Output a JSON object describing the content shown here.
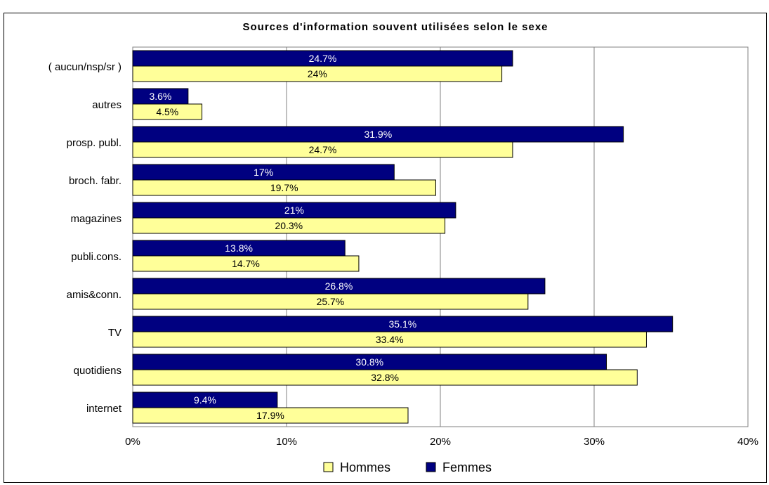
{
  "chart_data": {
    "type": "bar",
    "orientation": "horizontal",
    "title": "Sources d'information souvent utilisées selon le sexe",
    "categories": [
      "internet",
      "quotidiens",
      "TV",
      "amis&conn.",
      "publi.cons.",
      "magazines",
      "broch. fabr.",
      "prosp. publ.",
      "autres",
      "( aucun/nsp/sr )"
    ],
    "series": [
      {
        "name": "Hommes",
        "values": [
          17.9,
          32.8,
          33.4,
          25.7,
          14.7,
          20.3,
          19.7,
          24.7,
          4.5,
          24
        ],
        "labels": [
          "17.9%",
          "32.8%",
          "33.4%",
          "25.7%",
          "14.7%",
          "20.3%",
          "19.7%",
          "24.7%",
          "4.5%",
          "24%"
        ],
        "color": "#ffff99"
      },
      {
        "name": "Femmes",
        "values": [
          9.4,
          30.8,
          35.1,
          26.8,
          13.8,
          21,
          17,
          31.9,
          3.6,
          24.7
        ],
        "labels": [
          "9.4%",
          "30.8%",
          "35.1%",
          "26.8%",
          "13.8%",
          "21%",
          "17%",
          "31.9%",
          "3.6%",
          "24.7%"
        ],
        "color": "#000080"
      }
    ],
    "xlim": [
      0,
      40
    ],
    "xticks": [
      "0%",
      "10%",
      "20%",
      "30%",
      "40%"
    ],
    "grid": "vertical",
    "legend_position": "bottom",
    "xlabel": "",
    "ylabel": ""
  }
}
